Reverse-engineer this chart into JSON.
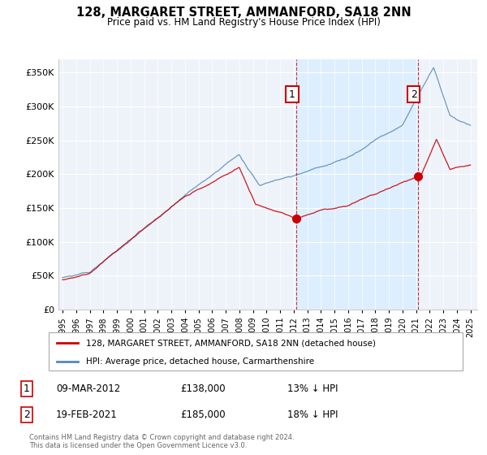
{
  "title": "128, MARGARET STREET, AMMANFORD, SA18 2NN",
  "subtitle": "Price paid vs. HM Land Registry's House Price Index (HPI)",
  "legend_label_red": "128, MARGARET STREET, AMMANFORD, SA18 2NN (detached house)",
  "legend_label_blue": "HPI: Average price, detached house, Carmarthenshire",
  "annotation1_date": "09-MAR-2012",
  "annotation1_price": "£138,000",
  "annotation1_pct": "13% ↓ HPI",
  "annotation2_date": "19-FEB-2021",
  "annotation2_price": "£185,000",
  "annotation2_pct": "18% ↓ HPI",
  "footer": "Contains HM Land Registry data © Crown copyright and database right 2024.\nThis data is licensed under the Open Government Licence v3.0.",
  "red_color": "#cc0000",
  "blue_color": "#5588bb",
  "shade_color": "#ddeeff",
  "background_color": "#eef3fa",
  "grid_color": "#ffffff",
  "ylim": [
    0,
    370000
  ],
  "yticks": [
    0,
    50000,
    100000,
    150000,
    200000,
    250000,
    300000,
    350000
  ],
  "purchase1_year": 2012.19,
  "purchase1_price": 138000,
  "purchase2_year": 2021.13,
  "purchase2_price": 185000
}
